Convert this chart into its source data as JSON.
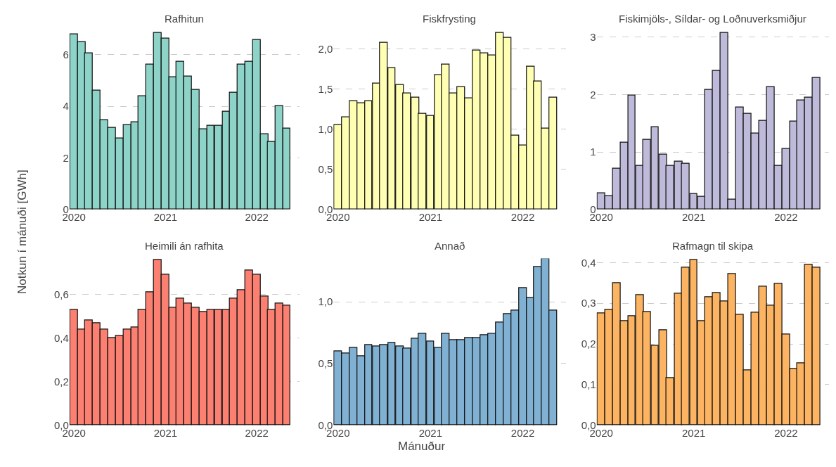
{
  "chart_data": [
    {
      "type": "bar",
      "title": "Rafhitun",
      "ylabel": "Notkun í mánuði [GWh]",
      "color": "#8dd3c7",
      "grid": "y",
      "x": [
        "2020-01",
        "2020-02",
        "2020-03",
        "2020-04",
        "2020-05",
        "2020-06",
        "2020-07",
        "2020-08",
        "2020-09",
        "2020-10",
        "2020-11",
        "2020-12",
        "2021-01",
        "2021-02",
        "2021-03",
        "2021-04",
        "2021-05",
        "2021-06",
        "2021-07",
        "2021-08",
        "2021-09",
        "2021-10",
        "2021-11",
        "2021-12",
        "2022-01",
        "2022-02",
        "2022-03",
        "2022-04",
        "2022-05"
      ],
      "values": [
        6.8,
        6.5,
        6.05,
        4.61,
        3.48,
        3.18,
        2.77,
        3.27,
        3.39,
        4.4,
        5.61,
        6.85,
        6.63,
        5.12,
        5.72,
        5.16,
        4.63,
        3.1,
        3.26,
        3.26,
        3.79,
        4.53,
        5.61,
        5.72,
        6.57,
        2.92,
        2.63,
        4.0,
        3.14
      ],
      "xlim": [
        "2019-12-14",
        "2022-06-20"
      ],
      "xticks": [
        "2020",
        "2021",
        "2022"
      ],
      "ylim": [
        0,
        6.9
      ],
      "yticks": [
        0,
        2,
        4,
        6
      ]
    },
    {
      "type": "bar",
      "title": "Fiskfrysting",
      "color": "#ffffb3",
      "grid": "y",
      "x": [
        "2020-01",
        "2020-02",
        "2020-03",
        "2020-04",
        "2020-05",
        "2020-06",
        "2020-07",
        "2020-08",
        "2020-09",
        "2020-10",
        "2020-11",
        "2020-12",
        "2021-01",
        "2021-02",
        "2021-03",
        "2021-04",
        "2021-05",
        "2021-06",
        "2021-07",
        "2021-08",
        "2021-09",
        "2021-10",
        "2021-11",
        "2021-12",
        "2022-01",
        "2022-02",
        "2022-03",
        "2022-04",
        "2022-05"
      ],
      "values": [
        1.05,
        1.15,
        1.35,
        1.33,
        1.35,
        1.57,
        2.08,
        1.76,
        1.55,
        1.45,
        1.4,
        1.19,
        1.17,
        1.68,
        1.81,
        1.45,
        1.53,
        1.39,
        1.98,
        1.95,
        1.92,
        2.2,
        2.14,
        0.92,
        0.8,
        1.78,
        1.6,
        1.01,
        1.4
      ],
      "xlim": [
        "2019-12-14",
        "2022-06-20"
      ],
      "xticks": [
        "2020",
        "2021",
        "2022"
      ],
      "ylim": [
        0,
        2.22
      ],
      "yticks": [
        {
          "value": 0,
          "label": "0,0"
        },
        {
          "value": 0.5,
          "label": "0,5"
        },
        {
          "value": 1,
          "label": "1,0"
        },
        {
          "value": 1.5,
          "label": "1,5"
        },
        {
          "value": 2,
          "label": "2,0"
        }
      ]
    },
    {
      "type": "bar",
      "title": "Fiskimjöls-, Síldar- og Loðnuverksmiðjur",
      "color": "#bebada",
      "grid": "y",
      "x": [
        "2020-01",
        "2020-02",
        "2020-03",
        "2020-04",
        "2020-05",
        "2020-06",
        "2020-07",
        "2020-08",
        "2020-09",
        "2020-10",
        "2020-11",
        "2020-12",
        "2021-01",
        "2021-02",
        "2021-03",
        "2021-04",
        "2021-05",
        "2021-06",
        "2021-07",
        "2021-08",
        "2021-09",
        "2021-10",
        "2021-11",
        "2021-12",
        "2022-01",
        "2022-02",
        "2022-03",
        "2022-04",
        "2022-05"
      ],
      "values": [
        0.29,
        0.24,
        0.71,
        1.16,
        1.98,
        0.76,
        1.21,
        1.44,
        0.96,
        0.76,
        0.84,
        0.8,
        0.27,
        0.22,
        2.08,
        2.41,
        3.08,
        0.18,
        1.78,
        1.67,
        1.32,
        1.54,
        2.13,
        0.76,
        1.05,
        1.53,
        1.9,
        1.95,
        2.29
      ],
      "xlim": [
        "2019-12-14",
        "2022-06-20"
      ],
      "xticks": [
        "2020",
        "2021",
        "2022"
      ],
      "ylim": [
        0,
        3.1
      ],
      "yticks": [
        0,
        1,
        2,
        3
      ]
    },
    {
      "type": "bar",
      "title": "Heimili án rafhita",
      "color": "#fb8072",
      "grid": "y",
      "x": [
        "2020-01",
        "2020-02",
        "2020-03",
        "2020-04",
        "2020-05",
        "2020-06",
        "2020-07",
        "2020-08",
        "2020-09",
        "2020-10",
        "2020-11",
        "2020-12",
        "2021-01",
        "2021-02",
        "2021-03",
        "2021-04",
        "2021-05",
        "2021-06",
        "2021-07",
        "2021-08",
        "2021-09",
        "2021-10",
        "2021-11",
        "2021-12",
        "2022-01",
        "2022-02",
        "2022-03",
        "2022-04",
        "2022-05"
      ],
      "values": [
        0.53,
        0.44,
        0.48,
        0.47,
        0.44,
        0.4,
        0.41,
        0.44,
        0.45,
        0.53,
        0.61,
        0.76,
        0.69,
        0.54,
        0.58,
        0.56,
        0.54,
        0.52,
        0.53,
        0.53,
        0.53,
        0.58,
        0.62,
        0.71,
        0.69,
        0.59,
        0.53,
        0.56,
        0.55
      ],
      "xlim": [
        "2019-12-14",
        "2022-06-20"
      ],
      "xticks": [
        "2020",
        "2021",
        "2022"
      ],
      "ylim": [
        0,
        0.765
      ],
      "yticks": [
        {
          "value": 0,
          "label": "0,0"
        },
        {
          "value": 0.2,
          "label": "0,2"
        },
        {
          "value": 0.4,
          "label": "0,4"
        },
        {
          "value": 0.6,
          "label": "0,6"
        }
      ]
    },
    {
      "type": "bar",
      "title": "Annað",
      "xlabel": "Mánuður",
      "color": "#80b1d3",
      "grid": "y",
      "x": [
        "2020-01",
        "2020-02",
        "2020-03",
        "2020-04",
        "2020-05",
        "2020-06",
        "2020-07",
        "2020-08",
        "2020-09",
        "2020-10",
        "2020-11",
        "2020-12",
        "2021-01",
        "2021-02",
        "2021-03",
        "2021-04",
        "2021-05",
        "2021-06",
        "2021-07",
        "2021-08",
        "2021-09",
        "2021-10",
        "2021-11",
        "2021-12",
        "2022-01",
        "2022-02",
        "2022-03",
        "2022-04",
        "2022-05"
      ],
      "values": [
        0.6,
        0.58,
        0.63,
        0.56,
        0.65,
        0.64,
        0.65,
        0.67,
        0.64,
        0.62,
        0.7,
        0.74,
        0.68,
        0.63,
        0.74,
        0.69,
        0.69,
        0.71,
        0.71,
        0.73,
        0.74,
        0.83,
        0.9,
        0.93,
        1.11,
        1.03,
        1.28,
        1.35,
        0.93
      ],
      "xlim": [
        "2019-12-14",
        "2022-06-20"
      ],
      "xticks": [
        "2020",
        "2021",
        "2022"
      ],
      "ylim": [
        0,
        1.35
      ],
      "yticks": [
        {
          "value": 0,
          "label": "0,0"
        },
        {
          "value": 0.5,
          "label": "0,5"
        },
        {
          "value": 1,
          "label": "1,0"
        }
      ]
    },
    {
      "type": "bar",
      "title": "Rafmagn til skipa",
      "color": "#fdb462",
      "grid": "y",
      "x": [
        "2020-01",
        "2020-02",
        "2020-03",
        "2020-04",
        "2020-05",
        "2020-06",
        "2020-07",
        "2020-08",
        "2020-09",
        "2020-10",
        "2020-11",
        "2020-12",
        "2021-01",
        "2021-02",
        "2021-03",
        "2021-04",
        "2021-05",
        "2021-06",
        "2021-07",
        "2021-08",
        "2021-09",
        "2021-10",
        "2021-11",
        "2021-12",
        "2022-01",
        "2022-02",
        "2022-03",
        "2022-04",
        "2022-05"
      ],
      "values": [
        0.275,
        0.284,
        0.35,
        0.256,
        0.269,
        0.32,
        0.278,
        0.195,
        0.233,
        0.116,
        0.323,
        0.387,
        0.407,
        0.256,
        0.315,
        0.325,
        0.305,
        0.372,
        0.272,
        0.135,
        0.277,
        0.341,
        0.294,
        0.347,
        0.223,
        0.138,
        0.153,
        0.395,
        0.388
      ],
      "xlim": [
        "2019-12-14",
        "2022-06-20"
      ],
      "xticks": [
        "2020",
        "2021",
        "2022"
      ],
      "ylim": [
        0,
        0.41
      ],
      "yticks": [
        {
          "value": 0,
          "label": "0,0"
        },
        {
          "value": 0.1,
          "label": "0,1"
        },
        {
          "value": 0.2,
          "label": "0,2"
        },
        {
          "value": 0.3,
          "label": "0,3"
        },
        {
          "value": 0.4,
          "label": "0,4"
        }
      ]
    }
  ]
}
